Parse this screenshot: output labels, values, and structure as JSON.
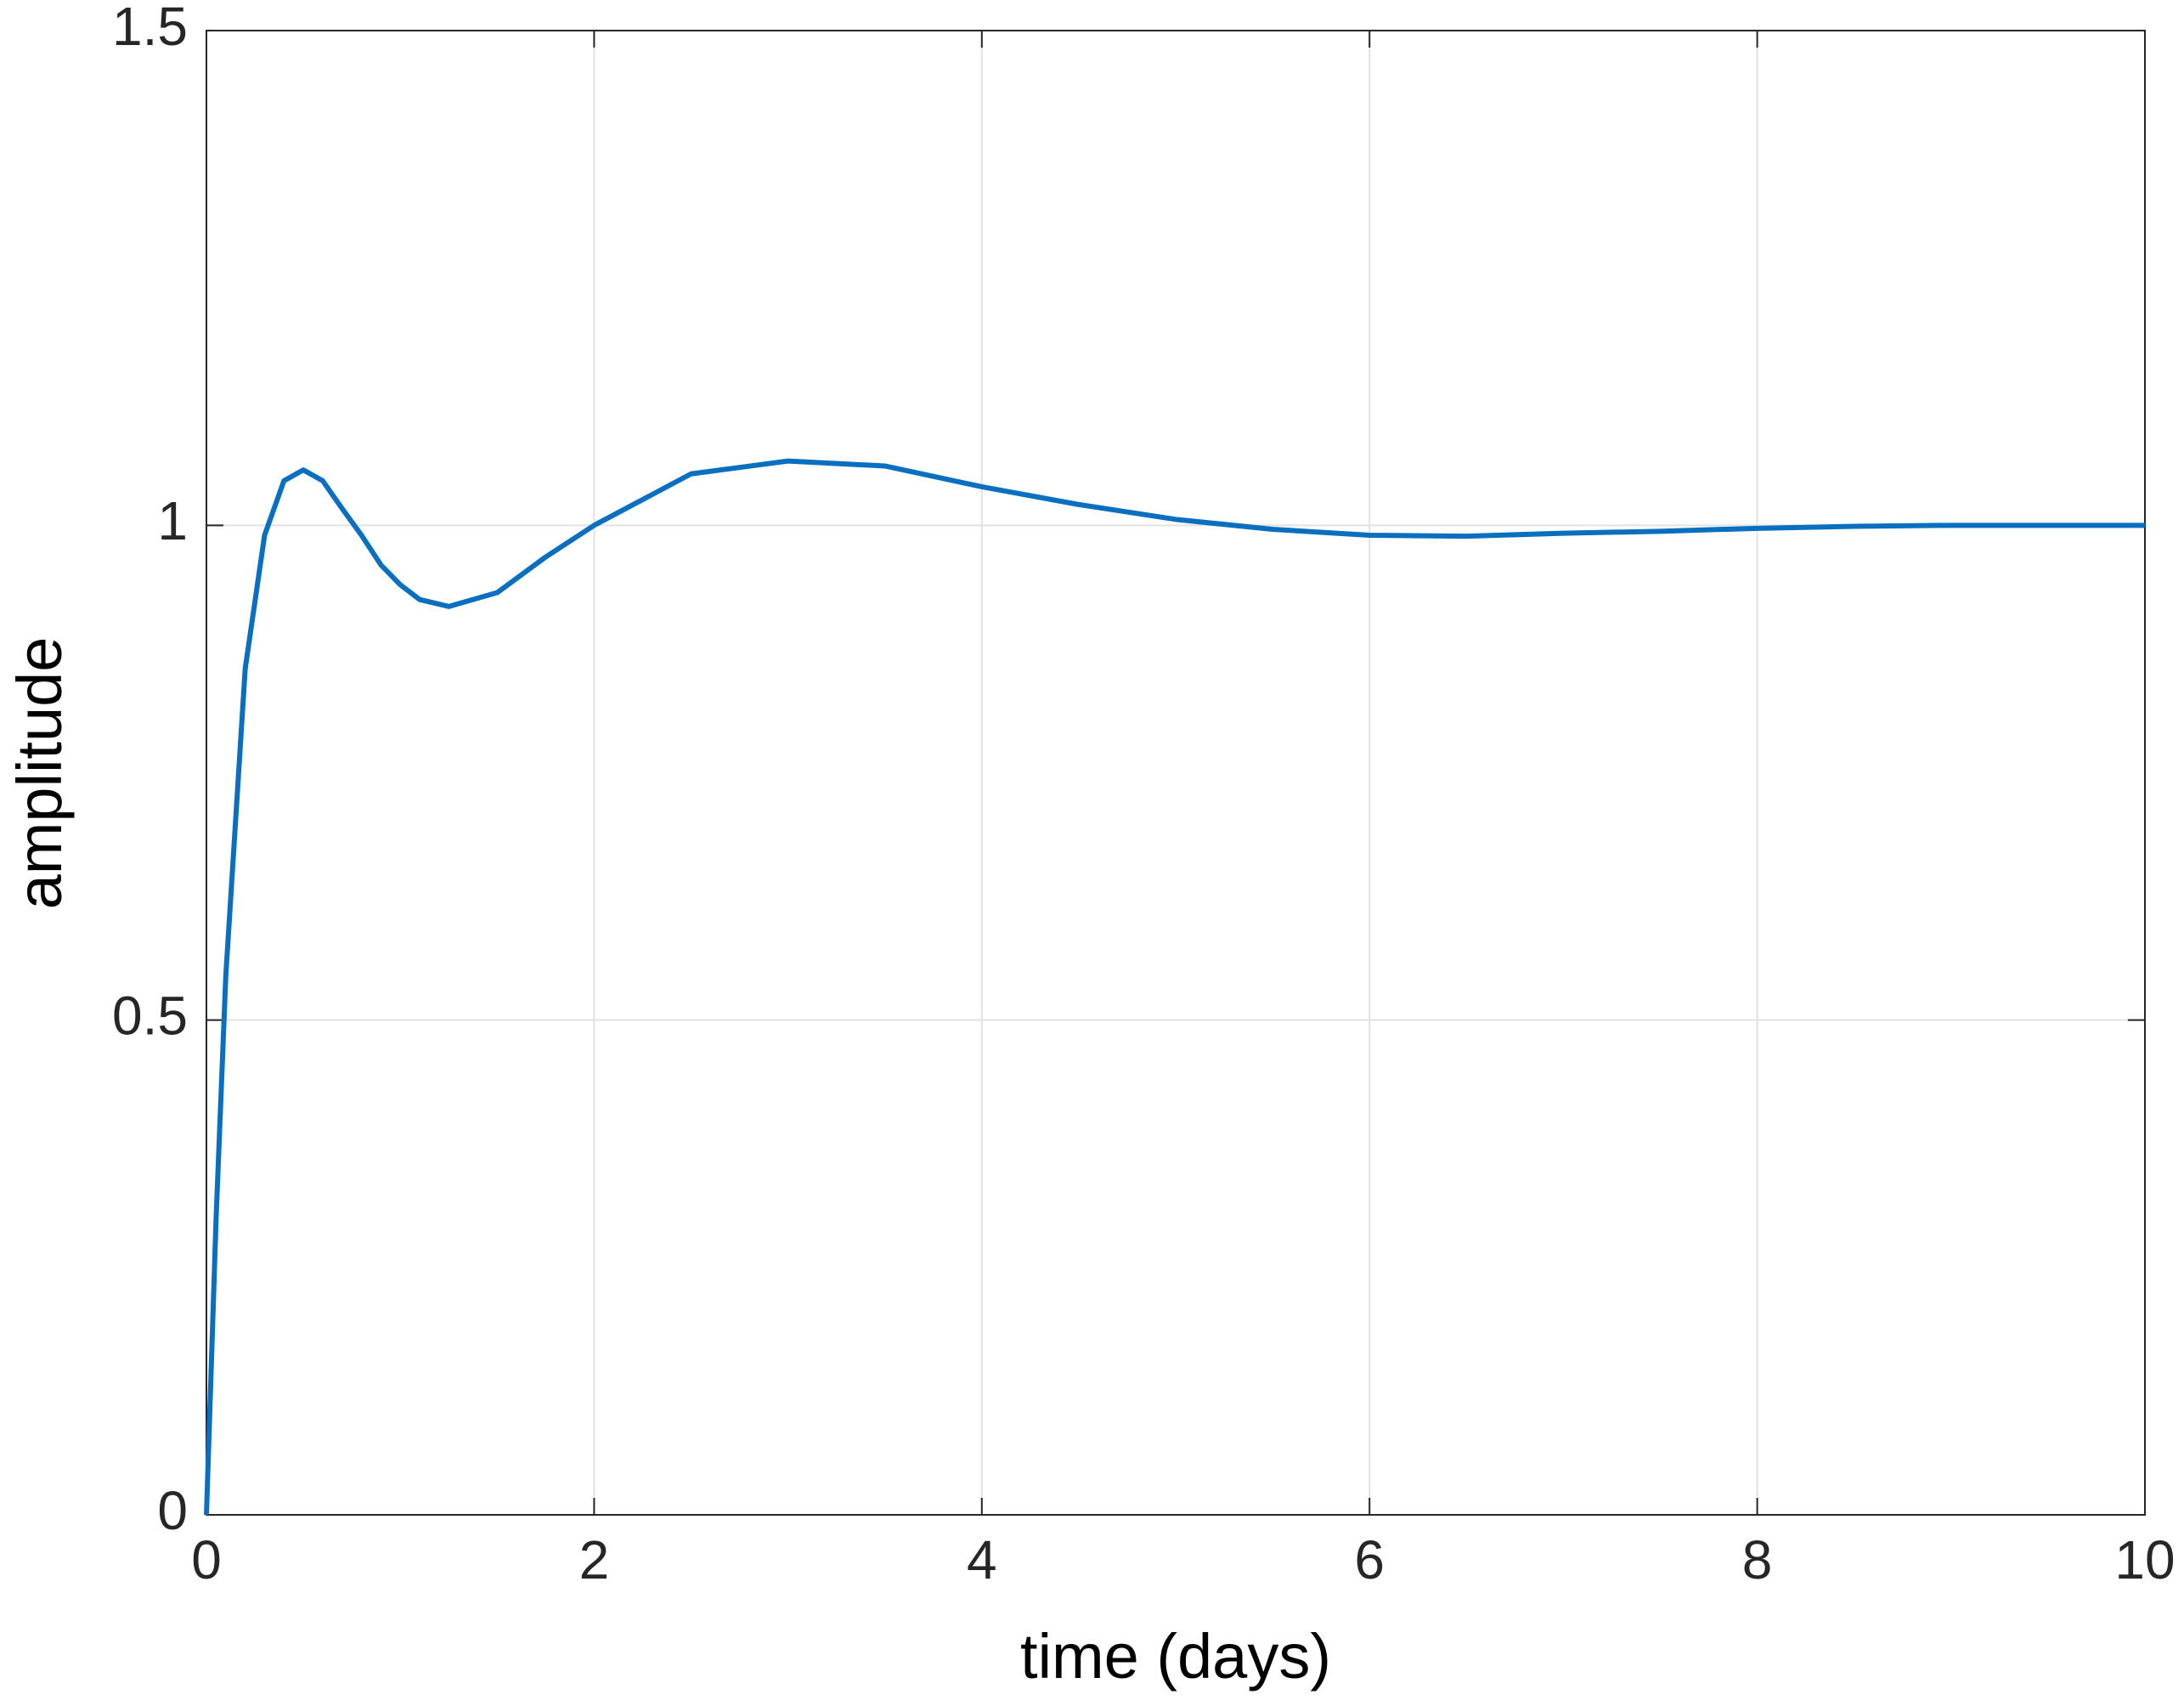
{
  "chart_data": {
    "type": "line",
    "xlabel": "time (days)",
    "ylabel": "amplitude",
    "x": [
      0,
      0.05,
      0.1,
      0.2,
      0.3,
      0.4,
      0.5,
      0.6,
      0.7,
      0.8,
      0.9,
      1.0,
      1.1,
      1.25,
      1.5,
      1.75,
      2.0,
      2.5,
      3.0,
      3.5,
      4.0,
      4.5,
      5.0,
      5.5,
      6.0,
      6.5,
      7.0,
      7.5,
      8.0,
      8.5,
      9.0,
      10.0
    ],
    "series": [
      {
        "color": "#0b6fbf",
        "values": [
          0,
          0.3,
          0.545,
          0.855,
          0.99,
          1.045,
          1.056,
          1.045,
          1.017,
          0.99,
          0.96,
          0.94,
          0.925,
          0.918,
          0.932,
          0.968,
          1.0,
          1.052,
          1.065,
          1.06,
          1.039,
          1.021,
          1.006,
          0.996,
          0.99,
          0.989,
          0.992,
          0.994,
          0.997,
          0.999,
          1.0,
          1.0
        ]
      }
    ],
    "xlim": [
      0,
      10
    ],
    "xticks": [
      0,
      2,
      4,
      6,
      8,
      10
    ],
    "ylim": [
      0,
      1.5
    ],
    "yticks": [
      0,
      0.5,
      1,
      1.5
    ],
    "grid": true
  }
}
